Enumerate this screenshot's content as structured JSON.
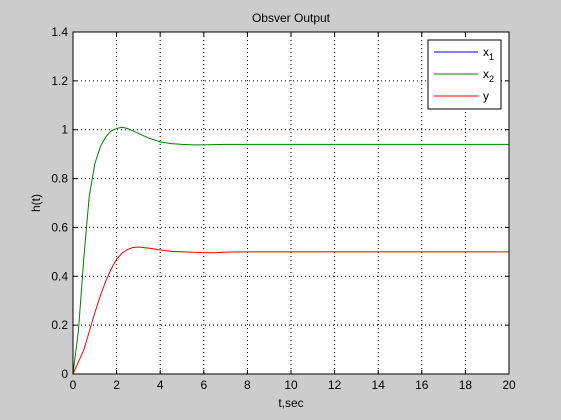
{
  "chart_data": {
    "type": "line",
    "title": "Obsver Output",
    "xlabel": "t,sec",
    "ylabel": "h(t)",
    "xlim": [
      0,
      20
    ],
    "ylim": [
      0,
      1.4
    ],
    "xticks": [
      0,
      2,
      4,
      6,
      8,
      10,
      12,
      14,
      16,
      18,
      20
    ],
    "yticks": [
      0,
      0.2,
      0.4,
      0.6,
      0.8,
      1,
      1.2,
      1.4
    ],
    "xtick_labels": [
      "0",
      "2",
      "4",
      "6",
      "8",
      "10",
      "12",
      "14",
      "16",
      "18",
      "20"
    ],
    "ytick_labels": [
      "0",
      "0.2",
      "0.4",
      "0.6",
      "0.8",
      "1",
      "1.2",
      "1.4"
    ],
    "grid": true,
    "grid_style": "dotted",
    "legend_position": "top-right",
    "series": [
      {
        "name": "x1",
        "name_base": "x",
        "name_sub": "1",
        "color": "#0000ff",
        "x": [
          0,
          20
        ],
        "y": [
          0,
          0
        ]
      },
      {
        "name": "x2",
        "name_base": "x",
        "name_sub": "2",
        "color": "#007f00",
        "x": [
          0,
          0.25,
          0.5,
          0.75,
          1.0,
          1.25,
          1.5,
          1.75,
          2.0,
          2.25,
          2.5,
          2.75,
          3.0,
          3.5,
          4.0,
          4.5,
          5.0,
          5.5,
          6.0,
          7.0,
          8.0,
          10.0,
          14.0,
          20.0
        ],
        "y": [
          0,
          0.18,
          0.48,
          0.73,
          0.86,
          0.93,
          0.97,
          0.995,
          1.005,
          1.01,
          1.005,
          0.995,
          0.985,
          0.965,
          0.95,
          0.943,
          0.94,
          0.938,
          0.938,
          0.94,
          0.94,
          0.94,
          0.94,
          0.94
        ]
      },
      {
        "name": "y",
        "name_base": "y",
        "name_sub": "",
        "color": "#ff0000",
        "x": [
          0,
          0.5,
          1.0,
          1.25,
          1.5,
          1.75,
          2.0,
          2.25,
          2.5,
          2.75,
          3.0,
          3.5,
          4.0,
          4.5,
          5.0,
          5.5,
          6.0,
          6.5,
          7.0,
          8.0,
          10.0,
          14.0,
          20.0
        ],
        "y": [
          0,
          0.1,
          0.25,
          0.32,
          0.38,
          0.43,
          0.47,
          0.495,
          0.51,
          0.518,
          0.52,
          0.515,
          0.508,
          0.502,
          0.5,
          0.498,
          0.497,
          0.496,
          0.499,
          0.5,
          0.5,
          0.5,
          0.5
        ]
      }
    ]
  }
}
